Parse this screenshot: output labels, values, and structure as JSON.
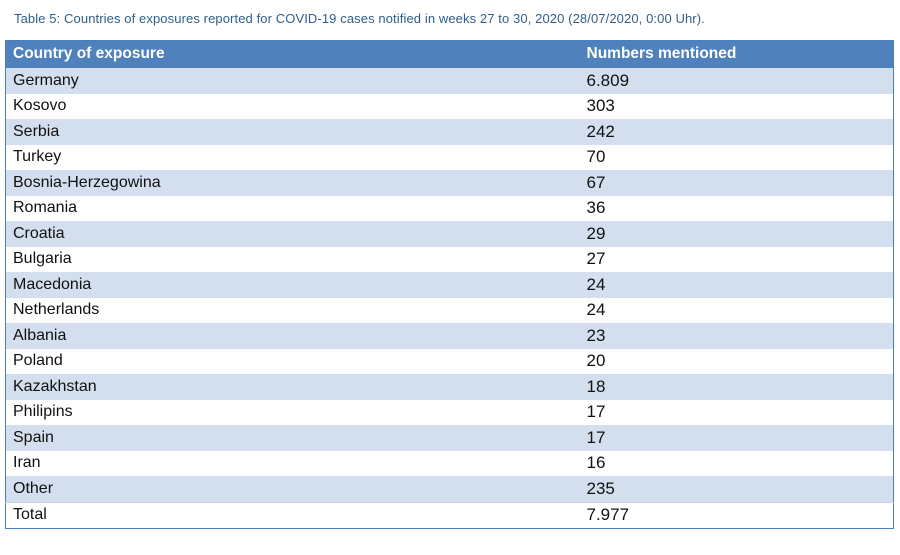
{
  "caption": "Table 5: Countries of exposures reported for COVID-19 cases notified in weeks 27 to 30, 2020 (28/07/2020, 0:00 Uhr).",
  "table": {
    "headers": [
      "Country of exposure",
      "Numbers mentioned"
    ],
    "rows": [
      {
        "country": "Germany",
        "number": "6.809"
      },
      {
        "country": "Kosovo",
        "number": "303"
      },
      {
        "country": "Serbia",
        "number": "242"
      },
      {
        "country": "Turkey",
        "number": "70"
      },
      {
        "country": "Bosnia-Herzegowina",
        "number": "67"
      },
      {
        "country": "Romania",
        "number": "36"
      },
      {
        "country": "Croatia",
        "number": "29"
      },
      {
        "country": "Bulgaria",
        "number": "27"
      },
      {
        "country": "Macedonia",
        "number": "24"
      },
      {
        "country": "Netherlands",
        "number": "24"
      },
      {
        "country": "Albania",
        "number": "23"
      },
      {
        "country": "Poland",
        "number": "20"
      },
      {
        "country": "Kazakhstan",
        "number": "18"
      },
      {
        "country": "Philipins",
        "number": "17"
      },
      {
        "country": "Spain",
        "number": "17"
      },
      {
        "country": "Iran",
        "number": "16"
      },
      {
        "country": "Other",
        "number": "235"
      }
    ],
    "total": {
      "label": "Total",
      "number": "7.977"
    }
  },
  "colors": {
    "header_bg": "#4f81bd",
    "band": "#d3dfee",
    "caption_text": "#2e5f8a"
  }
}
